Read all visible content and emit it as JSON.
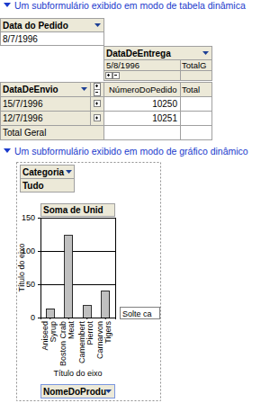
{
  "pivot_table": {
    "heading": "Um subformulário exibido em modo de tabela dinâmica",
    "filter_field": "Data do Pedido",
    "filter_value": "8/7/1996",
    "column_field": "DataDeEntrega",
    "column_items": [
      "5/8/1996",
      "TotalG"
    ],
    "row_field": "DataDeEnvio",
    "data_headers": [
      "NúmeroDoPedido",
      "Total"
    ],
    "rows": [
      {
        "label": "15/7/1996",
        "value": 10250
      },
      {
        "label": "12/7/1996",
        "value": 10251
      }
    ],
    "grand_total_label": "Total Geral"
  },
  "pivot_chart": {
    "heading": "Um subformulário exibido em modo de gráfico dinâmico",
    "filter_field": "Categoria",
    "filter_value": "Tudo",
    "drop_zone": "Solte ca",
    "category_field": "NomeDoProdu"
  },
  "chart_data": {
    "type": "bar",
    "title": "Soma de Unid",
    "x_label": "Título do eixo",
    "y_label": "Título do eixo",
    "categories": [
      "Aniseed Syrup",
      "Boston Crab Meat",
      "Camembert Pierrot",
      "Carnarvon Tigers"
    ],
    "values": [
      13,
      123,
      18,
      40
    ],
    "color": "#c0c0c0",
    "ylim": [
      0,
      150
    ],
    "yticks": [
      0,
      50,
      100,
      150
    ],
    "grid": true
  }
}
